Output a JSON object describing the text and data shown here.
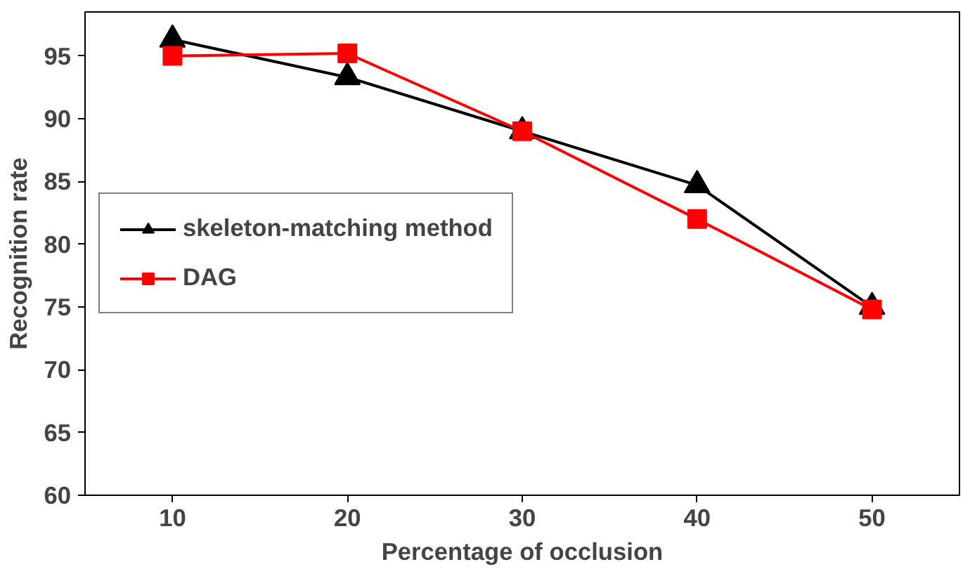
{
  "chart_data": {
    "type": "line",
    "xlabel": "Percentage of occlusion",
    "ylabel": "Recognition rate",
    "categories": [
      "10",
      "20",
      "30",
      "40",
      "50"
    ],
    "series": [
      {
        "name": "skeleton-matching method",
        "color": "#000000",
        "marker": "triangle",
        "values": [
          96.3,
          93.3,
          89,
          84.7,
          75
        ]
      },
      {
        "name": "DAG",
        "color": "#ff0000",
        "marker": "square",
        "values": [
          95,
          95.2,
          89,
          82,
          74.8
        ]
      }
    ],
    "ylim": [
      60,
      98.5
    ],
    "yticks": [
      60,
      65,
      70,
      75,
      80,
      85,
      90,
      95
    ],
    "grid": false,
    "legend": "left"
  }
}
